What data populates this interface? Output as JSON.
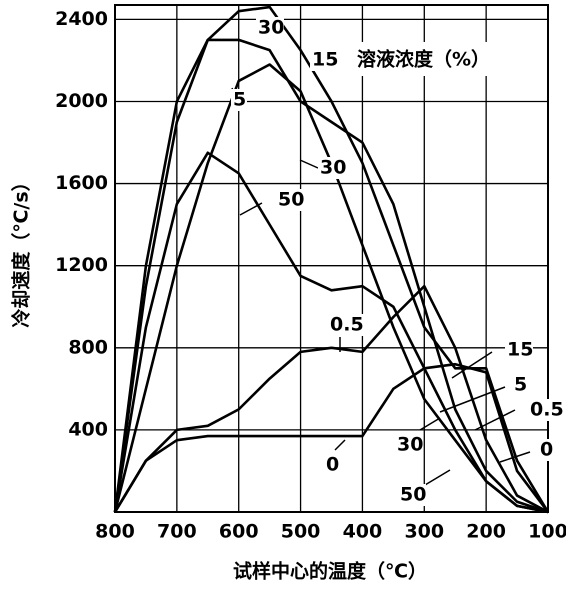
{
  "chart_data": {
    "type": "line",
    "y_label": "冷却速度（℃/s）",
    "x_label": "试样中心的温度（℃）",
    "annotation": "溶液浓度（%）",
    "x": [
      800,
      750,
      700,
      650,
      600,
      550,
      500,
      450,
      400,
      350,
      300,
      250,
      200,
      150,
      100
    ],
    "series": [
      {
        "name": "0",
        "color": "#000000",
        "values": [
          0,
          250,
          350,
          370,
          370,
          370,
          370,
          370,
          370,
          600,
          700,
          720,
          680,
          200,
          0
        ]
      },
      {
        "name": "0.5",
        "color": "#000000",
        "values": [
          0,
          250,
          400,
          420,
          500,
          650,
          780,
          800,
          780,
          950,
          1100,
          800,
          350,
          80,
          0
        ]
      },
      {
        "name": "5",
        "color": "#000000",
        "values": [
          0,
          600,
          1200,
          1700,
          2100,
          2180,
          2050,
          1700,
          1300,
          900,
          550,
          350,
          150,
          30,
          0
        ]
      },
      {
        "name": "15",
        "color": "#000000",
        "values": [
          0,
          1100,
          1900,
          2300,
          2440,
          2460,
          2250,
          2000,
          1700,
          1300,
          900,
          700,
          700,
          250,
          0
        ]
      },
      {
        "name": "30",
        "color": "#000000",
        "values": [
          0,
          1200,
          2000,
          2300,
          2300,
          2250,
          2000,
          1900,
          1800,
          1500,
          1000,
          500,
          200,
          50,
          0
        ]
      },
      {
        "name": "50",
        "color": "#000000",
        "values": [
          0,
          900,
          1500,
          1750,
          1650,
          1400,
          1150,
          1080,
          1100,
          1000,
          700,
          400,
          150,
          30,
          0
        ]
      }
    ],
    "xlim": [
      800,
      100
    ],
    "ylim": [
      0,
      2470
    ],
    "xticks": [
      800,
      700,
      600,
      500,
      400,
      300,
      200,
      100
    ],
    "yticks": [
      400,
      800,
      1200,
      1600,
      2000,
      2400
    ],
    "grid": true
  }
}
